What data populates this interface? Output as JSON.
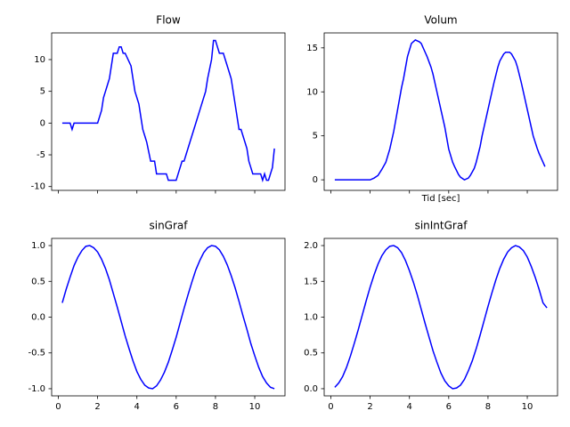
{
  "chart_data": [
    {
      "type": "line",
      "title": "Flow",
      "color": "#0000ff",
      "x": [
        0.2,
        0.6,
        0.7,
        0.8,
        2.0,
        2.1,
        2.2,
        2.3,
        2.4,
        2.5,
        2.6,
        2.7,
        2.8,
        3.0,
        3.1,
        3.2,
        3.3,
        3.4,
        3.7,
        3.8,
        3.9,
        4.0,
        4.1,
        4.2,
        4.3,
        4.4,
        4.5,
        4.7,
        4.9,
        5.0,
        5.1,
        5.5,
        5.6,
        6.0,
        6.1,
        6.2,
        6.3,
        6.4,
        6.5,
        6.6,
        6.8,
        7.0,
        7.2,
        7.3,
        7.5,
        7.6,
        7.8,
        7.9,
        8.0,
        8.1,
        8.2,
        8.4,
        8.5,
        8.7,
        8.8,
        9.0,
        9.1,
        9.2,
        9.3,
        9.5,
        9.6,
        9.7,
        9.8,
        9.9,
        10.3,
        10.4,
        10.5,
        10.6,
        10.7,
        10.8,
        10.9,
        11.0
      ],
      "values": [
        0,
        0,
        -1,
        0,
        0,
        1,
        2,
        4,
        5,
        6,
        7,
        9,
        11,
        11,
        12,
        12,
        11,
        11,
        9,
        7,
        5,
        4,
        3,
        1,
        -1,
        -2,
        -3,
        -6,
        -6,
        -8,
        -8,
        -8,
        -9,
        -9,
        -8,
        -7,
        -6,
        -6,
        -5,
        -4,
        -2,
        0,
        2,
        3,
        5,
        7,
        10,
        13,
        13,
        12,
        11,
        11,
        10,
        8,
        7,
        3,
        1,
        -1,
        -1,
        -3,
        -4,
        -6,
        -7,
        -8,
        -8,
        -9,
        -8,
        -9,
        -9,
        -8,
        -7,
        -4
      ],
      "xlim": [
        -0.34,
        11.54
      ],
      "ylim": [
        -10.6,
        14.2
      ],
      "xticks": [
        0,
        2,
        4,
        6,
        8,
        10
      ],
      "yticks": [
        -10,
        -5,
        0,
        5,
        10
      ],
      "xticklabels": false
    },
    {
      "type": "line",
      "title": "Volum",
      "xlabel": "Tid [sec]",
      "color": "#0000ff",
      "x": [
        0.2,
        1.0,
        2.0,
        2.2,
        2.4,
        2.6,
        2.8,
        3.0,
        3.1,
        3.2,
        3.4,
        3.6,
        3.7,
        3.9,
        4.1,
        4.3,
        4.5,
        4.6,
        4.8,
        4.9,
        5.1,
        5.2,
        5.4,
        5.5,
        5.7,
        5.8,
        6.0,
        6.2,
        6.3,
        6.5,
        6.6,
        6.8,
        7.0,
        7.1,
        7.3,
        7.4,
        7.6,
        7.7,
        7.9,
        8.0,
        8.2,
        8.3,
        8.5,
        8.6,
        8.8,
        8.9,
        9.1,
        9.2,
        9.4,
        9.5,
        9.7,
        9.8,
        10.0,
        10.2,
        10.3,
        10.5,
        10.6,
        10.8,
        10.9
      ],
      "values": [
        0,
        0,
        0,
        0.2,
        0.5,
        1.2,
        2,
        3.5,
        4.5,
        5.5,
        8,
        10.5,
        11.5,
        14,
        15.5,
        15.9,
        15.7,
        15.5,
        14.5,
        14,
        12.8,
        12,
        10,
        9,
        7,
        6,
        3.5,
        2,
        1.5,
        0.6,
        0.3,
        0,
        0.2,
        0.5,
        1.3,
        2,
        3.8,
        5,
        7,
        8,
        10,
        11,
        12.8,
        13.5,
        14.3,
        14.5,
        14.5,
        14.3,
        13.5,
        12.8,
        11,
        10,
        8,
        6,
        5,
        3.6,
        3,
        2,
        1.5
      ],
      "xlim": [
        -0.34,
        11.54
      ],
      "ylim": [
        -1.2,
        16.7
      ],
      "xticks": [
        0,
        2,
        4,
        6,
        8,
        10
      ],
      "yticks": [
        0,
        5,
        10,
        15
      ],
      "xticklabels": false
    },
    {
      "type": "line",
      "title": "sinGraf",
      "color": "#0000ff",
      "x": [
        0.2,
        0.4,
        0.6,
        0.8,
        1.0,
        1.2,
        1.4,
        1.6,
        1.8,
        2.0,
        2.2,
        2.4,
        2.6,
        2.8,
        3.0,
        3.2,
        3.4,
        3.6,
        3.8,
        4.0,
        4.2,
        4.4,
        4.6,
        4.8,
        5.0,
        5.2,
        5.4,
        5.6,
        5.8,
        6.0,
        6.2,
        6.4,
        6.6,
        6.8,
        7.0,
        7.2,
        7.4,
        7.6,
        7.8,
        8.0,
        8.2,
        8.4,
        8.6,
        8.8,
        9.0,
        9.2,
        9.4,
        9.6,
        9.8,
        10.0,
        10.2,
        10.4,
        10.6,
        10.8,
        11.0
      ],
      "values": [
        0.2,
        0.39,
        0.56,
        0.72,
        0.84,
        0.93,
        0.99,
        1.0,
        0.97,
        0.91,
        0.81,
        0.68,
        0.52,
        0.33,
        0.14,
        -0.06,
        -0.26,
        -0.44,
        -0.61,
        -0.76,
        -0.87,
        -0.95,
        -0.99,
        -1.0,
        -0.96,
        -0.88,
        -0.77,
        -0.63,
        -0.46,
        -0.28,
        -0.08,
        0.12,
        0.31,
        0.49,
        0.66,
        0.79,
        0.9,
        0.97,
        1.0,
        0.99,
        0.94,
        0.85,
        0.73,
        0.58,
        0.41,
        0.22,
        0.02,
        -0.17,
        -0.37,
        -0.54,
        -0.7,
        -0.83,
        -0.92,
        -0.98,
        -1.0
      ],
      "xlim": [
        -0.34,
        11.54
      ],
      "ylim": [
        -1.1,
        1.1
      ],
      "xticks": [
        0,
        2,
        4,
        6,
        8,
        10
      ],
      "yticks": [
        {
          "value": -1,
          "label": "-1.0"
        },
        -0.5,
        {
          "value": 0,
          "label": "0.0"
        },
        0.5,
        {
          "value": 1,
          "label": "1.0"
        }
      ],
      "xticklabels": true
    },
    {
      "type": "line",
      "title": "sinIntGraf",
      "color": "#0000ff",
      "x": [
        0.2,
        0.4,
        0.6,
        0.8,
        1.0,
        1.2,
        1.4,
        1.6,
        1.8,
        2.0,
        2.2,
        2.4,
        2.6,
        2.8,
        3.0,
        3.2,
        3.4,
        3.6,
        3.8,
        4.0,
        4.2,
        4.4,
        4.6,
        4.8,
        5.0,
        5.2,
        5.4,
        5.6,
        5.8,
        6.0,
        6.2,
        6.4,
        6.6,
        6.8,
        7.0,
        7.2,
        7.4,
        7.6,
        7.8,
        8.0,
        8.2,
        8.4,
        8.6,
        8.8,
        9.0,
        9.2,
        9.4,
        9.6,
        9.8,
        10.0,
        10.2,
        10.4,
        10.6,
        10.8,
        11.0
      ],
      "values": [
        0.02,
        0.08,
        0.17,
        0.3,
        0.46,
        0.64,
        0.83,
        1.03,
        1.23,
        1.42,
        1.59,
        1.74,
        1.86,
        1.94,
        1.99,
        2.0,
        1.97,
        1.9,
        1.79,
        1.65,
        1.49,
        1.31,
        1.11,
        0.91,
        0.72,
        0.53,
        0.37,
        0.22,
        0.11,
        0.04,
        0.0,
        0.01,
        0.05,
        0.13,
        0.25,
        0.39,
        0.56,
        0.75,
        0.95,
        1.15,
        1.34,
        1.52,
        1.68,
        1.81,
        1.91,
        1.97,
        2.0,
        1.98,
        1.93,
        1.84,
        1.71,
        1.56,
        1.39,
        1.2,
        1.13
      ],
      "xlim": [
        -0.34,
        11.54
      ],
      "ylim": [
        -0.1,
        2.1
      ],
      "xticks": [
        0,
        2,
        4,
        6,
        8,
        10
      ],
      "yticks": [
        {
          "value": 0,
          "label": "0.0"
        },
        0.5,
        {
          "value": 1,
          "label": "1.0"
        },
        1.5,
        {
          "value": 2,
          "label": "2.0"
        }
      ],
      "xticklabels": true
    }
  ]
}
